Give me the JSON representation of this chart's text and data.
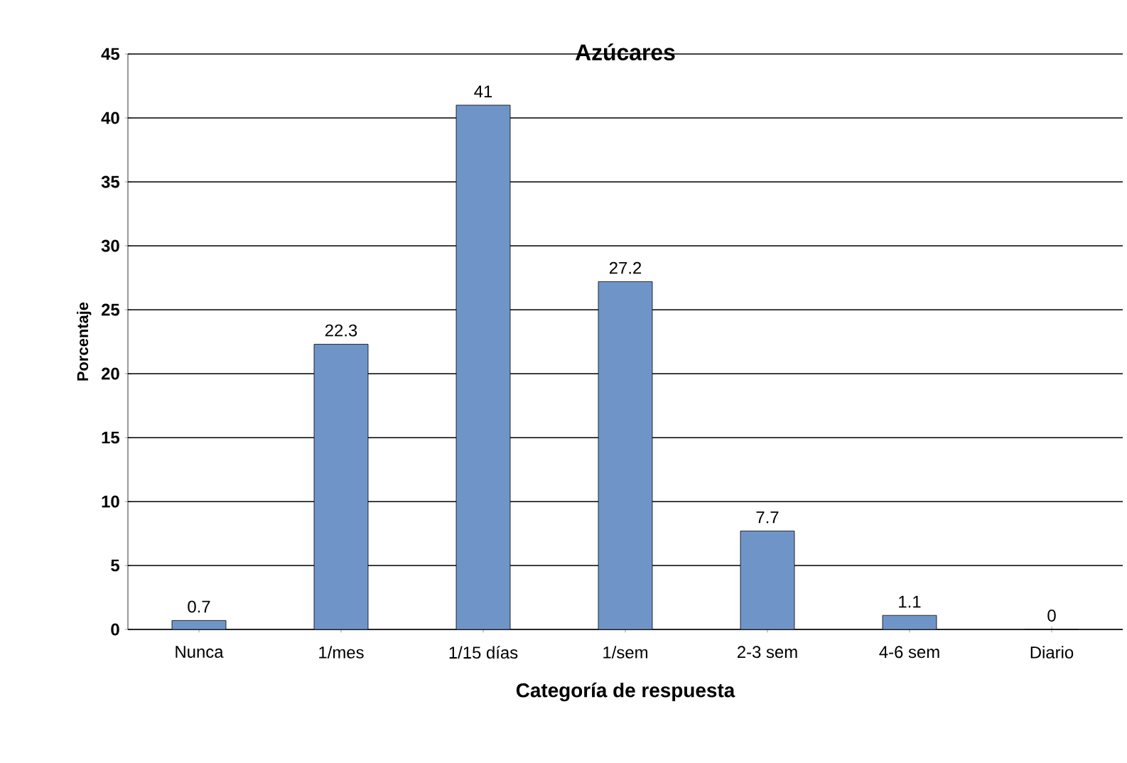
{
  "chart_data": {
    "type": "bar",
    "title": "Azúcares",
    "xlabel": "Categoría de respuesta",
    "ylabel": "Porcentaje",
    "categories": [
      "Nunca",
      "1/mes",
      "1/15 días",
      "1/sem",
      "2-3 sem",
      "4-6 sem",
      "Diario"
    ],
    "values": [
      0.7,
      22.3,
      41,
      27.2,
      7.7,
      1.1,
      0
    ],
    "color": "#6f95c8",
    "ylim": [
      0,
      45
    ],
    "yticks": [
      0,
      5,
      10,
      15,
      20,
      25,
      30,
      35,
      40,
      45
    ],
    "grid": "y",
    "data_labels": true
  }
}
